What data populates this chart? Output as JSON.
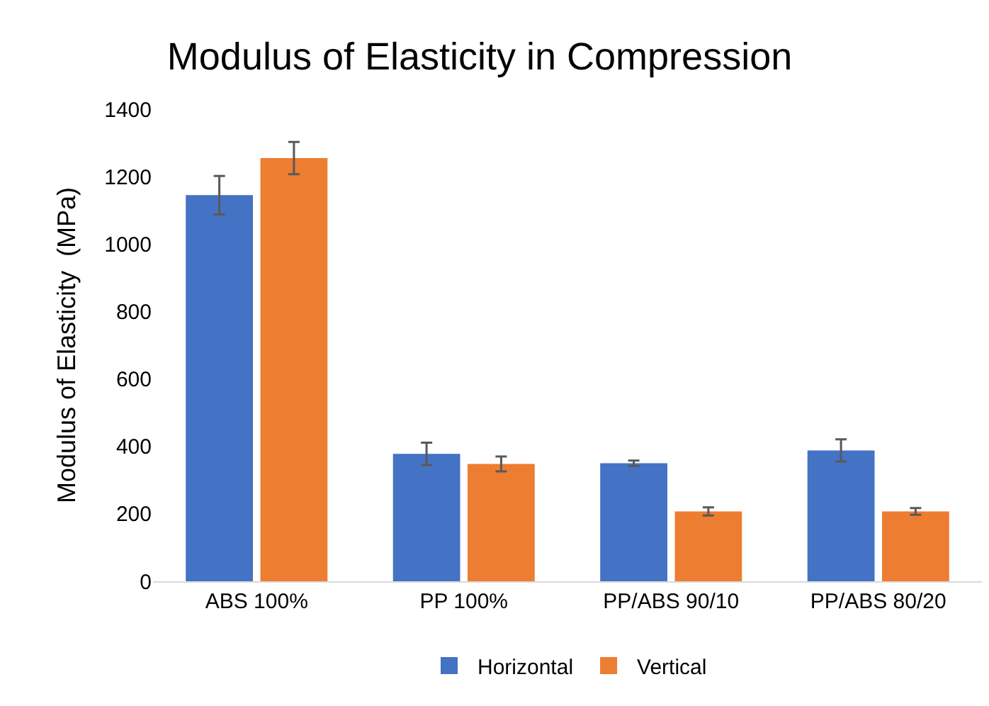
{
  "chart_data": {
    "type": "bar",
    "title": "Modulus of Elasticity in Compression",
    "ylabel": "Modulus of Elasticity  (MPa)",
    "categories": [
      "ABS 100%",
      "PP 100%",
      "PP/ABS 90/10",
      "PP/ABS 80/20"
    ],
    "series": [
      {
        "name": "Horizontal",
        "color": "#4472c4",
        "values": [
          1145,
          378,
          350,
          388
        ],
        "errors": [
          57,
          33,
          8,
          33
        ]
      },
      {
        "name": "Vertical",
        "color": "#ed7d31",
        "values": [
          1255,
          348,
          207,
          207
        ],
        "errors": [
          48,
          22,
          12,
          10
        ]
      }
    ],
    "ylim": [
      0,
      1400
    ],
    "yticks": [
      0,
      200,
      400,
      600,
      800,
      1000,
      1200,
      1400
    ],
    "grid": false,
    "legend": "bottom"
  }
}
